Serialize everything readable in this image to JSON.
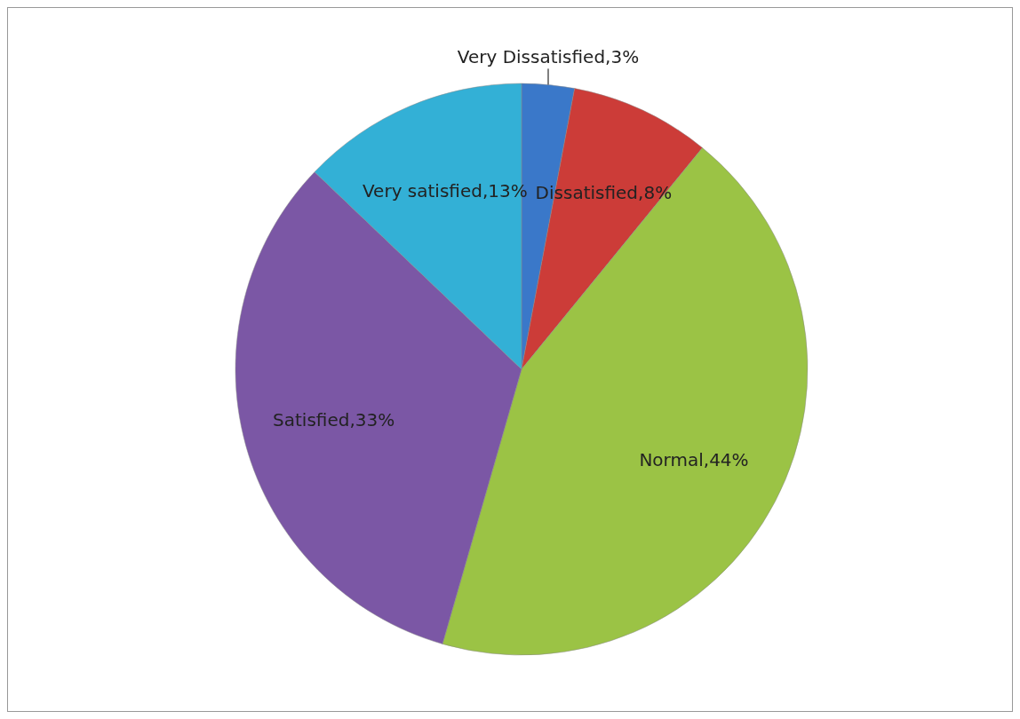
{
  "chart_data": {
    "type": "pie",
    "categories": [
      "Very Dissatisfied",
      "Dissatisfied",
      "Normal",
      "Satisfied",
      "Very satisfied"
    ],
    "values": [
      3,
      8,
      44,
      33,
      13
    ],
    "value_labels": [
      "3%",
      "8%",
      "44%",
      "33%",
      "13%"
    ],
    "colors": [
      "#3a78c9",
      "#cc3c38",
      "#9bc345",
      "#7b57a5",
      "#33b0d6"
    ],
    "legend": false
  }
}
